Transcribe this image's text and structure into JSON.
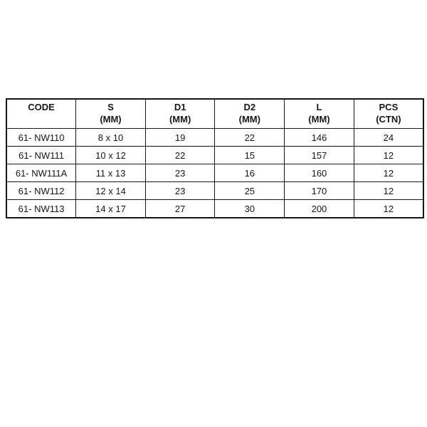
{
  "table": {
    "headers": [
      {
        "line1": "CODE",
        "line2": ""
      },
      {
        "line1": "S",
        "line2": "(MM)"
      },
      {
        "line1": "D1",
        "line2": "(MM)"
      },
      {
        "line1": "D2",
        "line2": "(MM)"
      },
      {
        "line1": "L",
        "line2": "(MM)"
      },
      {
        "line1": "PCS",
        "line2": "(CTN)"
      }
    ],
    "rows": [
      [
        "61- NW110",
        "8 x 10",
        "19",
        "22",
        "146",
        "24"
      ],
      [
        "61- NW111",
        "10 x 12",
        "22",
        "15",
        "157",
        "12"
      ],
      [
        "61- NW111A",
        "11 x 13",
        "23",
        "16",
        "160",
        "12"
      ],
      [
        "61- NW112",
        "12 x 14",
        "23",
        "25",
        "170",
        "12"
      ],
      [
        "61- NW113",
        "14 x 17",
        "27",
        "30",
        "200",
        "12"
      ]
    ]
  }
}
